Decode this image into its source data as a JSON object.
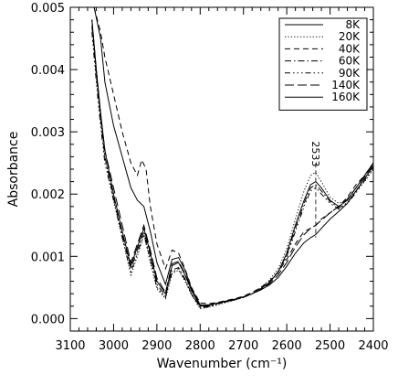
{
  "chart_data": {
    "type": "line",
    "title": "",
    "xlabel": "Wavenumber (cm⁻¹)",
    "ylabel": "Absorbance",
    "xlim": [
      3100,
      2400
    ],
    "ylim": [
      -0.0002,
      0.005
    ],
    "x_reversed": true,
    "grid": false,
    "legend_position": "top-right",
    "x_ticks": [
      3100,
      3000,
      2900,
      2800,
      2700,
      2600,
      2500,
      2400
    ],
    "x_tick_labels": [
      "3100",
      "3000",
      "2900",
      "2800",
      "2700",
      "2600",
      "2500",
      "2400"
    ],
    "y_ticks": [
      0.0,
      0.001,
      0.002,
      0.003,
      0.004,
      0.005
    ],
    "y_tick_labels": [
      "0.000",
      "0.001",
      "0.002",
      "0.003",
      "0.004",
      "0.005"
    ],
    "annotations": [
      {
        "text": "2533",
        "x": 2533,
        "y": 0.0027,
        "rotation": 90
      }
    ],
    "series": [
      {
        "name": "8K",
        "dash": "",
        "x": [
          3050,
          3040,
          3030,
          3020,
          3000,
          2980,
          2960,
          2945,
          2930,
          2915,
          2900,
          2880,
          2865,
          2850,
          2835,
          2820,
          2800,
          2780,
          2760,
          2740,
          2720,
          2700,
          2680,
          2660,
          2640,
          2620,
          2600,
          2580,
          2560,
          2545,
          2533,
          2520,
          2500,
          2480,
          2460,
          2440,
          2420,
          2400
        ],
        "y": [
          0.0048,
          0.004,
          0.0033,
          0.0027,
          0.002,
          0.0014,
          0.00085,
          0.00115,
          0.00145,
          0.00105,
          0.0006,
          0.0004,
          0.00085,
          0.0009,
          0.0007,
          0.00045,
          0.0002,
          0.00021,
          0.00025,
          0.00028,
          0.00031,
          0.00035,
          0.0004,
          0.00048,
          0.00058,
          0.00075,
          0.00105,
          0.0015,
          0.0019,
          0.00215,
          0.0022,
          0.0021,
          0.0019,
          0.0018,
          0.0019,
          0.0021,
          0.0023,
          0.0025
        ]
      },
      {
        "name": "20K",
        "dash": "1.2 2.2",
        "x": [
          3050,
          3040,
          3030,
          3020,
          3000,
          2980,
          2960,
          2945,
          2930,
          2915,
          2900,
          2880,
          2865,
          2850,
          2835,
          2820,
          2800,
          2780,
          2760,
          2740,
          2720,
          2700,
          2680,
          2660,
          2640,
          2620,
          2600,
          2580,
          2560,
          2545,
          2533,
          2520,
          2500,
          2480,
          2460,
          2440,
          2420,
          2400
        ],
        "y": [
          0.0048,
          0.0039,
          0.0032,
          0.0026,
          0.0019,
          0.0013,
          0.0007,
          0.001,
          0.00135,
          0.0009,
          0.00048,
          0.00032,
          0.00072,
          0.00078,
          0.0006,
          0.00038,
          0.00016,
          0.00018,
          0.00022,
          0.00026,
          0.0003,
          0.00034,
          0.0004,
          0.0005,
          0.00062,
          0.0008,
          0.00112,
          0.0016,
          0.00205,
          0.0023,
          0.00235,
          0.0022,
          0.00195,
          0.00185,
          0.0019,
          0.00205,
          0.0022,
          0.0024
        ]
      },
      {
        "name": "40K",
        "dash": "6 4",
        "x": [
          3045,
          3030,
          3020,
          3000,
          2980,
          2960,
          2945,
          2935,
          2925,
          2915,
          2900,
          2880,
          2865,
          2850,
          2835,
          2820,
          2800,
          2780,
          2760,
          2740,
          2720,
          2700,
          2680,
          2660,
          2640,
          2620,
          2600,
          2580,
          2560,
          2545,
          2533,
          2520,
          2500,
          2480,
          2460,
          2440,
          2420,
          2400
        ],
        "y": [
          0.005,
          0.0046,
          0.0042,
          0.0036,
          0.003,
          0.0025,
          0.0023,
          0.00255,
          0.0024,
          0.0018,
          0.0012,
          0.0008,
          0.0011,
          0.00105,
          0.0008,
          0.0005,
          0.00025,
          0.00024,
          0.00026,
          0.00029,
          0.00032,
          0.00036,
          0.00042,
          0.0005,
          0.0006,
          0.00075,
          0.00095,
          0.0012,
          0.0014,
          0.00145,
          0.0015,
          0.0016,
          0.0017,
          0.0018,
          0.00195,
          0.00215,
          0.0023,
          0.0025
        ]
      },
      {
        "name": "60K",
        "dash": "7 3 1.5 3",
        "x": [
          3050,
          3040,
          3030,
          3020,
          3000,
          2980,
          2960,
          2945,
          2930,
          2915,
          2900,
          2880,
          2865,
          2850,
          2835,
          2820,
          2800,
          2780,
          2760,
          2740,
          2720,
          2700,
          2680,
          2660,
          2640,
          2620,
          2600,
          2580,
          2560,
          2545,
          2533,
          2520,
          2500,
          2480,
          2460,
          2440,
          2420,
          2400
        ],
        "y": [
          0.0047,
          0.0039,
          0.0032,
          0.0026,
          0.00195,
          0.00135,
          0.0008,
          0.0011,
          0.0014,
          0.001,
          0.00055,
          0.00036,
          0.00078,
          0.00082,
          0.00064,
          0.0004,
          0.00018,
          0.0002,
          0.00024,
          0.00027,
          0.0003,
          0.00034,
          0.0004,
          0.00048,
          0.00058,
          0.00075,
          0.00102,
          0.00145,
          0.00185,
          0.0021,
          0.00215,
          0.00205,
          0.00188,
          0.00178,
          0.00186,
          0.00205,
          0.00225,
          0.00245
        ]
      },
      {
        "name": "90K",
        "dash": "6 3 1.5 3 1.5 3 1.5 3",
        "x": [
          3050,
          3040,
          3030,
          3020,
          3000,
          2980,
          2960,
          2945,
          2930,
          2915,
          2900,
          2880,
          2865,
          2850,
          2835,
          2820,
          2800,
          2780,
          2760,
          2740,
          2720,
          2700,
          2680,
          2660,
          2640,
          2620,
          2600,
          2580,
          2560,
          2545,
          2533,
          2520,
          2500,
          2480,
          2460,
          2440,
          2420,
          2400
        ],
        "y": [
          0.0046,
          0.0038,
          0.0031,
          0.0025,
          0.0019,
          0.0013,
          0.00075,
          0.00105,
          0.00135,
          0.00095,
          0.0005,
          0.00034,
          0.00074,
          0.0008,
          0.00062,
          0.00039,
          0.00017,
          0.00019,
          0.00023,
          0.00027,
          0.0003,
          0.00034,
          0.0004,
          0.00048,
          0.00058,
          0.00074,
          0.001,
          0.0014,
          0.0018,
          0.00205,
          0.0021,
          0.002,
          0.00185,
          0.00176,
          0.00185,
          0.00202,
          0.00222,
          0.00242
        ]
      },
      {
        "name": "140K",
        "dash": "10 4",
        "x": [
          3050,
          3040,
          3030,
          3020,
          3000,
          2980,
          2960,
          2945,
          2930,
          2915,
          2900,
          2880,
          2865,
          2850,
          2835,
          2820,
          2800,
          2780,
          2760,
          2740,
          2720,
          2700,
          2680,
          2660,
          2640,
          2620,
          2600,
          2580,
          2560,
          2545,
          2533,
          2520,
          2500,
          2480,
          2460,
          2440,
          2420,
          2400
        ],
        "y": [
          0.0048,
          0.004,
          0.0033,
          0.0027,
          0.0021,
          0.0015,
          0.0009,
          0.0012,
          0.0015,
          0.0011,
          0.00065,
          0.00042,
          0.00088,
          0.00092,
          0.00072,
          0.00046,
          0.00021,
          0.00022,
          0.00025,
          0.00028,
          0.00031,
          0.00035,
          0.0004,
          0.00047,
          0.00056,
          0.0007,
          0.0009,
          0.00115,
          0.00135,
          0.00145,
          0.0015,
          0.00158,
          0.0017,
          0.0018,
          0.00192,
          0.0021,
          0.00228,
          0.00248
        ]
      },
      {
        "name": "160K",
        "dash": "",
        "x": [
          3045,
          3030,
          3020,
          3000,
          2980,
          2960,
          2945,
          2930,
          2915,
          2900,
          2880,
          2865,
          2850,
          2835,
          2820,
          2800,
          2780,
          2760,
          2740,
          2720,
          2700,
          2680,
          2660,
          2640,
          2620,
          2600,
          2580,
          2560,
          2545,
          2533,
          2520,
          2500,
          2480,
          2460,
          2440,
          2420,
          2400
        ],
        "y": [
          0.005,
          0.0045,
          0.0038,
          0.0031,
          0.0026,
          0.0021,
          0.0019,
          0.0018,
          0.0014,
          0.0009,
          0.00055,
          0.00095,
          0.00098,
          0.00078,
          0.00048,
          0.00022,
          0.00022,
          0.00025,
          0.00028,
          0.00031,
          0.00035,
          0.0004,
          0.00046,
          0.00054,
          0.00066,
          0.00084,
          0.00105,
          0.00122,
          0.0013,
          0.00135,
          0.00145,
          0.0016,
          0.00172,
          0.00185,
          0.00205,
          0.00225,
          0.00245
        ]
      }
    ]
  }
}
